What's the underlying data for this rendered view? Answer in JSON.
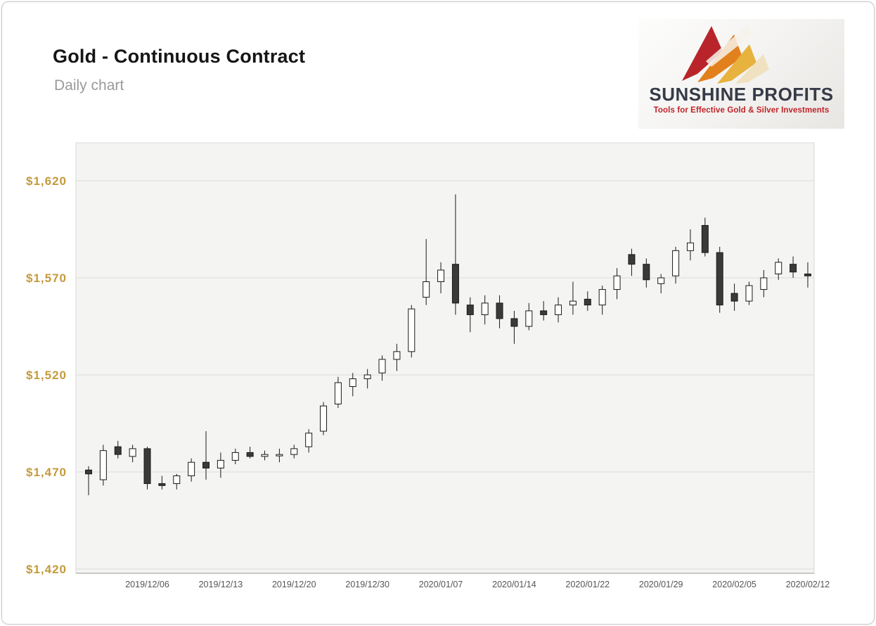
{
  "page": {
    "title": "Gold - Continuous Contract",
    "subtitle": "Daily chart"
  },
  "logo": {
    "name": "SUNSHINE PROFITS",
    "tagline": "Tools for Effective Gold & Silver Investments",
    "colors": {
      "arrow_red": "#b9242b",
      "arrow_orange": "#e2801c",
      "arrow_gold": "#e7b23e",
      "arrow_cream": "#f0e2c0",
      "name_text": "#363b47",
      "tagline_text": "#bf2228"
    }
  },
  "chart_data": {
    "type": "candlestick",
    "title": "Gold - Continuous Contract",
    "subtitle": "Daily chart",
    "legend": "none",
    "grid": "horizontal",
    "y_axis": {
      "labels": [
        "$1,620",
        "$1,570",
        "$1,520",
        "$1,470",
        "$1,420"
      ],
      "values": [
        1620,
        1570,
        1520,
        1470,
        1420
      ],
      "color": "#c49a3c",
      "ylim": [
        1420,
        1620
      ]
    },
    "x_axis": {
      "tick_labels": [
        "2019/12/06",
        "2019/12/13",
        "2019/12/20",
        "2019/12/30",
        "2020/01/07",
        "2020/01/14",
        "2020/01/22",
        "2020/01/29",
        "2020/02/05",
        "2020/02/12"
      ],
      "tick_indices": [
        4,
        9,
        14,
        19,
        24,
        29,
        34,
        39,
        44,
        49
      ],
      "color": "#555555"
    },
    "style": {
      "plot_bg": "#f4f4f2",
      "plot_border": "#d9d9d9",
      "grid_color": "#dcdcda",
      "axis_line": "#979797",
      "up_fill": "#ffffff",
      "down_fill": "#3a3a3a",
      "candle_stroke": "#1a1a1a"
    },
    "columns": [
      "date",
      "open",
      "high",
      "low",
      "close"
    ],
    "candles": [
      [
        "2019/12/02",
        1471,
        1473,
        1458,
        1469
      ],
      [
        "2019/12/03",
        1466,
        1484,
        1463,
        1481
      ],
      [
        "2019/12/04",
        1483,
        1486,
        1477,
        1479
      ],
      [
        "2019/12/05",
        1478,
        1484,
        1475,
        1482
      ],
      [
        "2019/12/06",
        1482,
        1483,
        1461,
        1464
      ],
      [
        "2019/12/09",
        1464,
        1468,
        1461,
        1463
      ],
      [
        "2019/12/10",
        1464,
        1469,
        1461,
        1468
      ],
      [
        "2019/12/11",
        1468,
        1477,
        1465,
        1475
      ],
      [
        "2019/12/12",
        1475,
        1491,
        1466,
        1472
      ],
      [
        "2019/12/13",
        1472,
        1480,
        1467,
        1476
      ],
      [
        "2019/12/16",
        1476,
        1482,
        1474,
        1480
      ],
      [
        "2019/12/17",
        1480,
        1483,
        1477,
        1478
      ],
      [
        "2019/12/18",
        1478,
        1481,
        1476,
        1479
      ],
      [
        "2019/12/19",
        1479,
        1482,
        1475,
        1479
      ],
      [
        "2019/12/20",
        1479,
        1484,
        1477,
        1482
      ],
      [
        "2019/12/23",
        1483,
        1492,
        1480,
        1490
      ],
      [
        "2019/12/24",
        1491,
        1506,
        1489,
        1504
      ],
      [
        "2019/12/26",
        1505,
        1519,
        1503,
        1516
      ],
      [
        "2019/12/27",
        1514,
        1521,
        1509,
        1518
      ],
      [
        "2019/12/30",
        1518,
        1523,
        1513,
        1520
      ],
      [
        "2019/12/31",
        1521,
        1530,
        1517,
        1528
      ],
      [
        "2020/01/02",
        1528,
        1536,
        1522,
        1532
      ],
      [
        "2020/01/03",
        1532,
        1556,
        1529,
        1554
      ],
      [
        "2020/01/06",
        1560,
        1590,
        1556,
        1568
      ],
      [
        "2020/01/07",
        1568,
        1578,
        1562,
        1574
      ],
      [
        "2020/01/08",
        1577,
        1613,
        1551,
        1557
      ],
      [
        "2020/01/09",
        1556,
        1560,
        1542,
        1551
      ],
      [
        "2020/01/10",
        1551,
        1561,
        1546,
        1557
      ],
      [
        "2020/01/13",
        1557,
        1561,
        1544,
        1549
      ],
      [
        "2020/01/14",
        1549,
        1553,
        1536,
        1545
      ],
      [
        "2020/01/15",
        1545,
        1557,
        1543,
        1553
      ],
      [
        "2020/01/16",
        1553,
        1558,
        1548,
        1551
      ],
      [
        "2020/01/17",
        1551,
        1560,
        1547,
        1556
      ],
      [
        "2020/01/21",
        1556,
        1568,
        1551,
        1558
      ],
      [
        "2020/01/22",
        1559,
        1563,
        1553,
        1556
      ],
      [
        "2020/01/23",
        1556,
        1566,
        1551,
        1564
      ],
      [
        "2020/01/24",
        1564,
        1575,
        1559,
        1571
      ],
      [
        "2020/01/27",
        1582,
        1585,
        1571,
        1577
      ],
      [
        "2020/01/28",
        1577,
        1580,
        1565,
        1569
      ],
      [
        "2020/01/29",
        1567,
        1572,
        1562,
        1570
      ],
      [
        "2020/01/30",
        1571,
        1586,
        1567,
        1584
      ],
      [
        "2020/01/31",
        1584,
        1595,
        1579,
        1588
      ],
      [
        "2020/02/03",
        1597,
        1601,
        1581,
        1583
      ],
      [
        "2020/02/04",
        1583,
        1586,
        1552,
        1556
      ],
      [
        "2020/02/05",
        1562,
        1567,
        1553,
        1558
      ],
      [
        "2020/02/06",
        1558,
        1568,
        1556,
        1566
      ],
      [
        "2020/02/07",
        1564,
        1574,
        1560,
        1570
      ],
      [
        "2020/02/10",
        1572,
        1580,
        1569,
        1578
      ],
      [
        "2020/02/11",
        1577,
        1581,
        1570,
        1573
      ],
      [
        "2020/02/12",
        1572,
        1578,
        1565,
        1571
      ]
    ]
  }
}
